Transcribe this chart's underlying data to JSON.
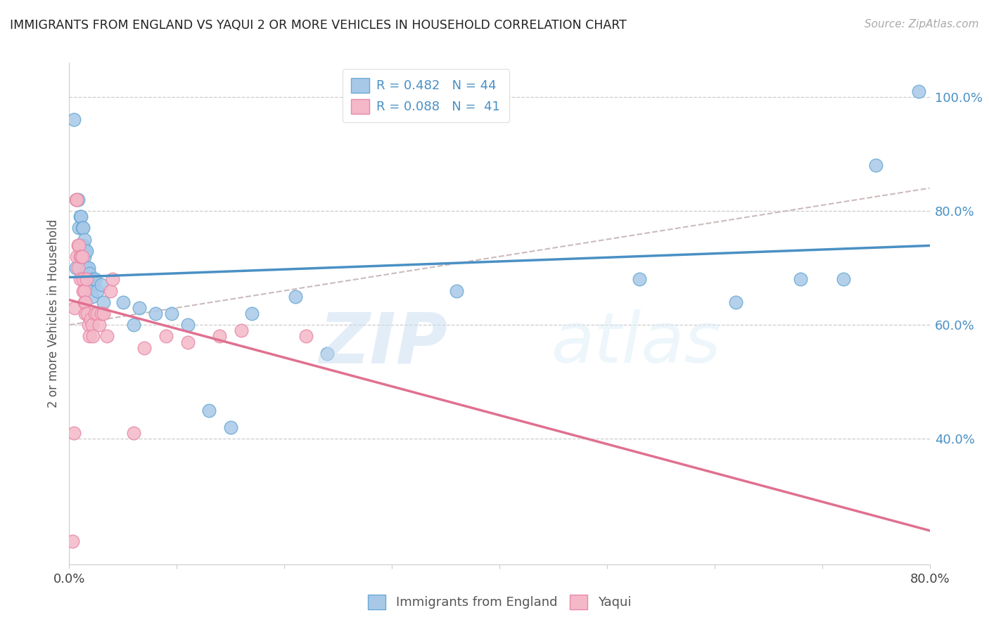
{
  "title": "IMMIGRANTS FROM ENGLAND VS YAQUI 2 OR MORE VEHICLES IN HOUSEHOLD CORRELATION CHART",
  "source": "Source: ZipAtlas.com",
  "ylabel": "2 or more Vehicles in Household",
  "legend_label1": "Immigrants from England",
  "legend_label2": "Yaqui",
  "legend_r1": "R = 0.482",
  "legend_n1": "N = 44",
  "legend_r2": "R = 0.088",
  "legend_n2": "N = 41",
  "color_blue": "#a8c8e8",
  "color_blue_edge": "#6aaad4",
  "color_blue_line": "#4a90c4",
  "color_pink": "#f4b8c8",
  "color_pink_edge": "#e88aaa",
  "color_pink_line": "#e07090",
  "color_dashed": "#ccbbbb",
  "watermark_zip": "ZIP",
  "watermark_atlas": "atlas",
  "xlim": [
    0.0,
    0.8
  ],
  "ylim": [
    0.18,
    1.06
  ],
  "blue_x": [
    0.004,
    0.006,
    0.008,
    0.009,
    0.01,
    0.01,
    0.011,
    0.012,
    0.013,
    0.013,
    0.014,
    0.014,
    0.015,
    0.016,
    0.016,
    0.017,
    0.018,
    0.018,
    0.019,
    0.02,
    0.021,
    0.022,
    0.024,
    0.026,
    0.03,
    0.032,
    0.05,
    0.06,
    0.065,
    0.08,
    0.095,
    0.11,
    0.13,
    0.15,
    0.17,
    0.21,
    0.24,
    0.36,
    0.53,
    0.62,
    0.68,
    0.72,
    0.75,
    0.79
  ],
  "blue_y": [
    0.96,
    0.7,
    0.82,
    0.77,
    0.79,
    0.74,
    0.79,
    0.77,
    0.77,
    0.74,
    0.75,
    0.72,
    0.73,
    0.73,
    0.7,
    0.68,
    0.7,
    0.68,
    0.69,
    0.67,
    0.65,
    0.68,
    0.68,
    0.66,
    0.67,
    0.64,
    0.64,
    0.6,
    0.63,
    0.62,
    0.62,
    0.6,
    0.45,
    0.42,
    0.62,
    0.65,
    0.55,
    0.66,
    0.68,
    0.64,
    0.68,
    0.68,
    0.88,
    1.01
  ],
  "pink_x": [
    0.003,
    0.004,
    0.005,
    0.006,
    0.007,
    0.007,
    0.008,
    0.008,
    0.009,
    0.01,
    0.01,
    0.011,
    0.012,
    0.013,
    0.013,
    0.014,
    0.014,
    0.015,
    0.015,
    0.016,
    0.017,
    0.018,
    0.019,
    0.02,
    0.021,
    0.022,
    0.024,
    0.026,
    0.028,
    0.03,
    0.032,
    0.035,
    0.038,
    0.04,
    0.06,
    0.07,
    0.09,
    0.11,
    0.14,
    0.16,
    0.22
  ],
  "pink_y": [
    0.22,
    0.41,
    0.63,
    0.82,
    0.82,
    0.72,
    0.74,
    0.7,
    0.74,
    0.72,
    0.68,
    0.72,
    0.72,
    0.68,
    0.66,
    0.66,
    0.64,
    0.64,
    0.62,
    0.68,
    0.62,
    0.6,
    0.58,
    0.61,
    0.6,
    0.58,
    0.62,
    0.62,
    0.6,
    0.62,
    0.62,
    0.58,
    0.66,
    0.68,
    0.41,
    0.56,
    0.58,
    0.57,
    0.58,
    0.59,
    0.58
  ]
}
